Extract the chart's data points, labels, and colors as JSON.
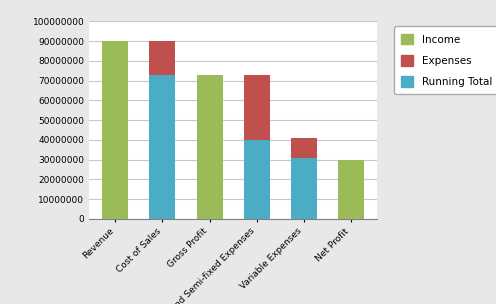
{
  "categories": [
    "Revenue",
    "Cost of Sales",
    "Gross Profit",
    "Fixed and Semi-fixed Expenses",
    "Variable Expenses",
    "Net Profit"
  ],
  "income": [
    90000000,
    0,
    73000000,
    0,
    0,
    30000000
  ],
  "expenses": [
    0,
    17000000,
    0,
    33000000,
    10000000,
    0
  ],
  "running_total": [
    0,
    73000000,
    0,
    40000000,
    31000000,
    0
  ],
  "income_color": "#9BBB59",
  "expenses_color": "#C0504D",
  "running_total_color": "#4BACC6",
  "ylim": [
    0,
    100000000
  ],
  "yticks": [
    0,
    10000000,
    20000000,
    30000000,
    40000000,
    50000000,
    60000000,
    70000000,
    80000000,
    90000000,
    100000000
  ],
  "legend_labels": [
    "Income",
    "Expenses",
    "Running Total"
  ],
  "outer_bg": "#E8E8E8",
  "plot_bg_color": "#FFFFFF",
  "grid_color": "#C8C8C8",
  "bar_width": 0.55
}
